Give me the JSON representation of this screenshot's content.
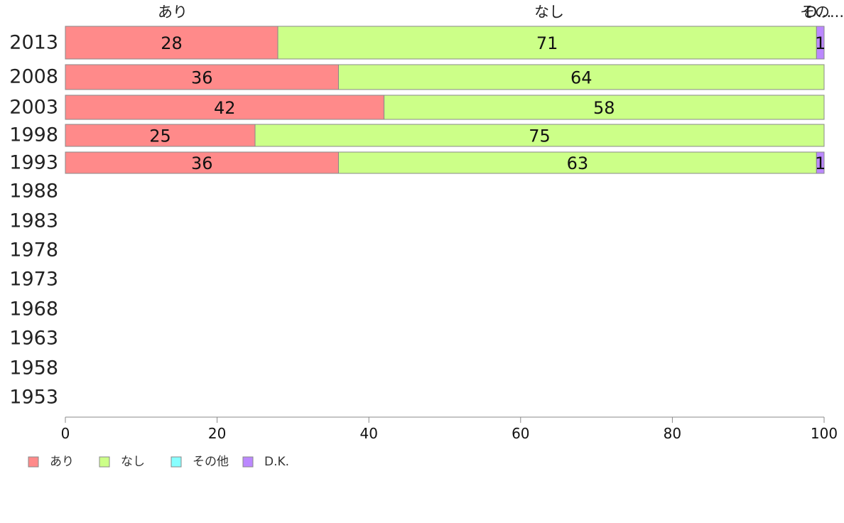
{
  "chart_data": {
    "type": "bar",
    "orientation": "horizontal",
    "stacked": true,
    "title": "",
    "xlabel": "",
    "ylabel": "",
    "xlim": [
      0,
      100
    ],
    "x_ticks": [
      0,
      20,
      40,
      60,
      80,
      100
    ],
    "categories": [
      "2013",
      "2008",
      "2003",
      "1998",
      "1993",
      "1988",
      "1983",
      "1978",
      "1973",
      "1968",
      "1963",
      "1958",
      "1953"
    ],
    "series": [
      {
        "name": "あり",
        "color": "#ff8a8a",
        "values": [
          28,
          36,
          42,
          25,
          36,
          null,
          null,
          null,
          null,
          null,
          null,
          null,
          null
        ]
      },
      {
        "name": "なし",
        "color": "#ccff88",
        "values": [
          71,
          64,
          58,
          75,
          63,
          null,
          null,
          null,
          null,
          null,
          null,
          null,
          null
        ]
      },
      {
        "name": "その他",
        "color": "#88ffff",
        "values": [
          0,
          0,
          0,
          0,
          0,
          null,
          null,
          null,
          null,
          null,
          null,
          null,
          null
        ]
      },
      {
        "name": "D.K.",
        "color": "#bb88ff",
        "values": [
          1,
          0,
          0,
          0,
          1,
          null,
          null,
          null,
          null,
          null,
          null,
          null,
          null
        ]
      }
    ],
    "column_headers": [
      "あり",
      "なし",
      "その...",
      "D..."
    ],
    "legend": {
      "placement": "bottom-left",
      "entries": [
        "あり",
        "なし",
        "その他",
        "D.K."
      ]
    },
    "grid": false
  }
}
